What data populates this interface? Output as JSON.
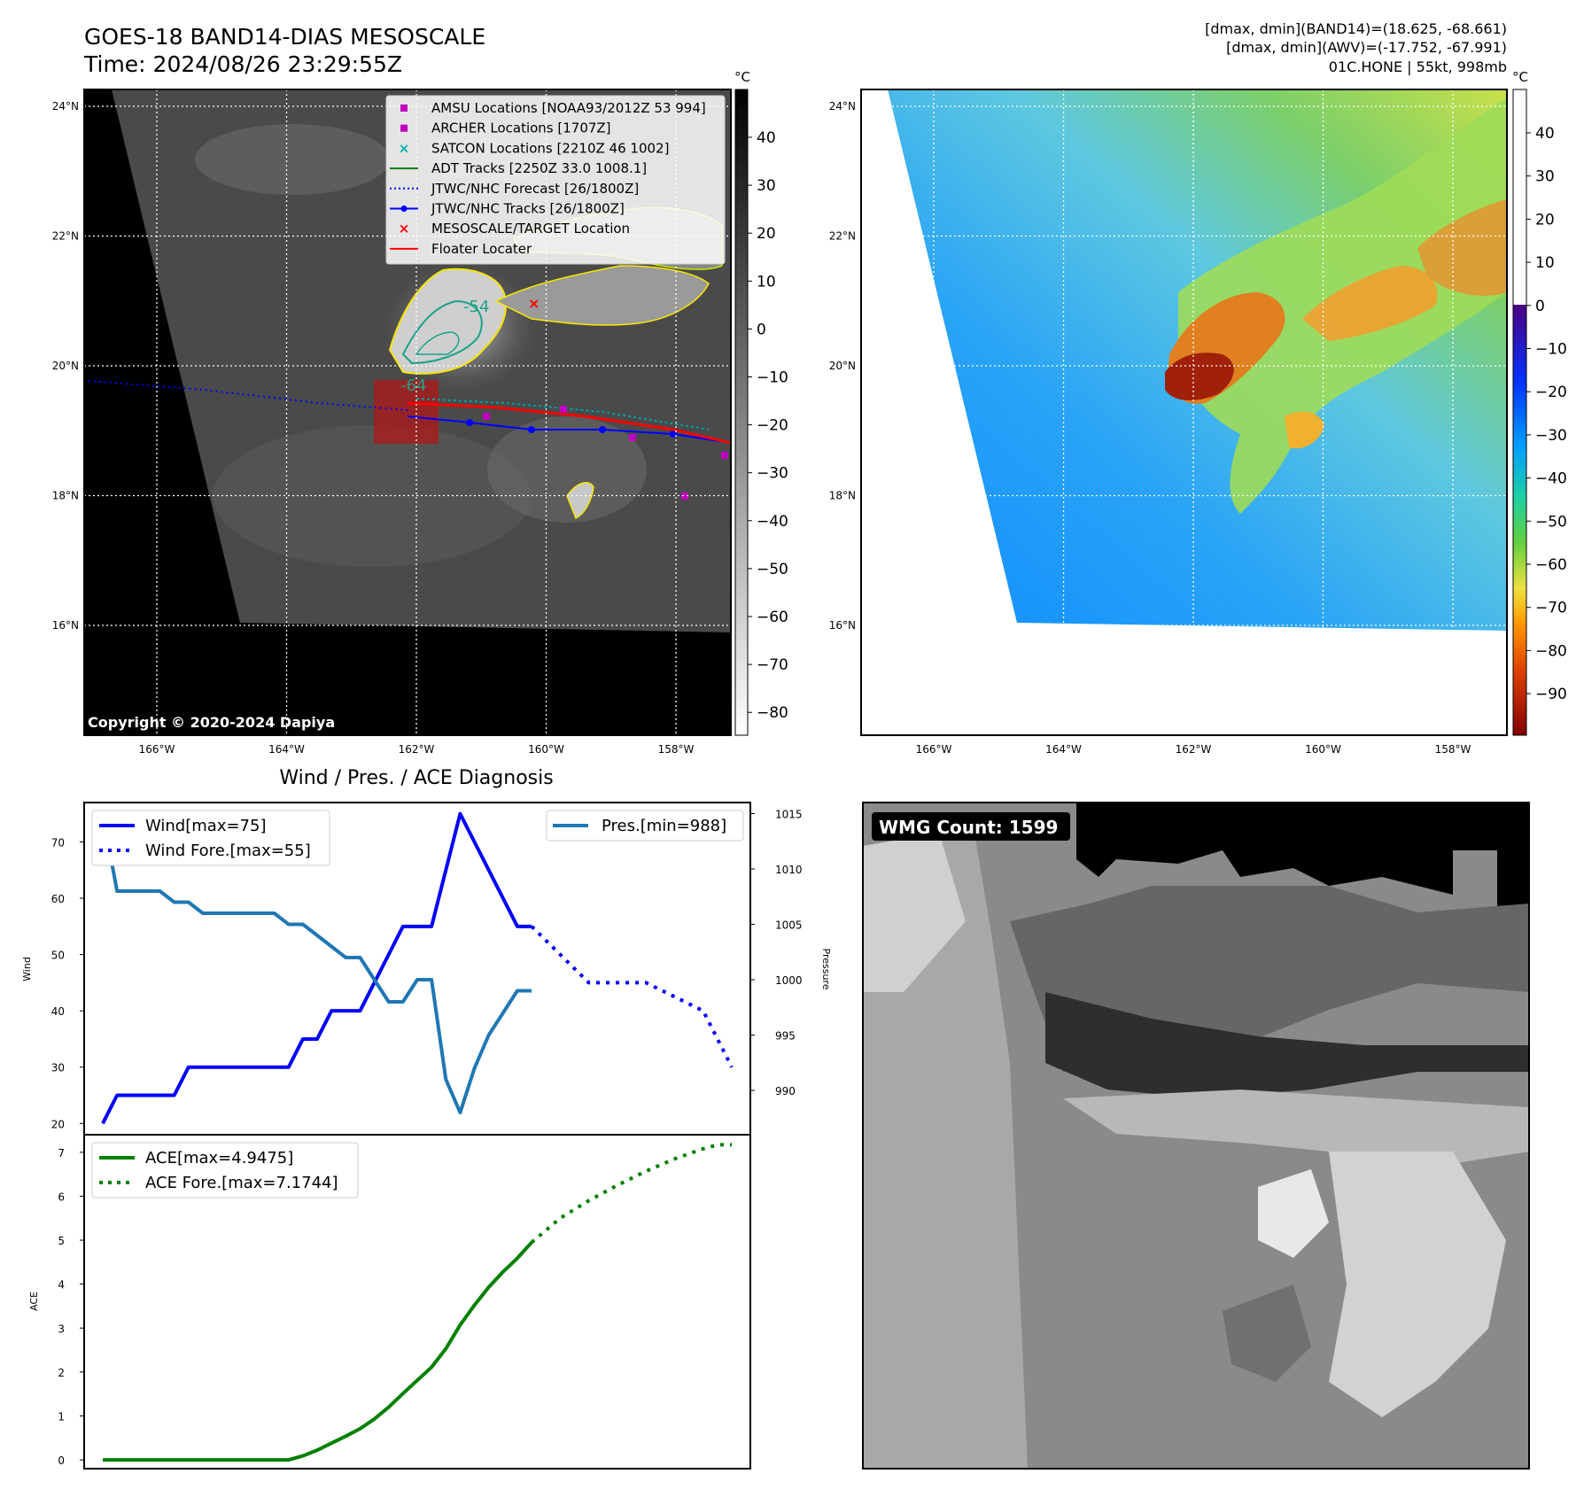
{
  "header": {
    "title": "GOES-18 BAND14-DIAS MESOSCALE",
    "time": "Time: 2024/08/26 23:29:55Z",
    "stats_line1": "[dmax, dmin](BAND14)=(18.625, -68.661)",
    "stats_line2": "[dmax, dmin](AWV)=(-17.752, -67.991)",
    "storm_line": "01C.HONE | 55kt, 998mb"
  },
  "map_axes": {
    "lon_labels": [
      "166°W",
      "164°W",
      "162°W",
      "160°W",
      "158°W"
    ],
    "lat_labels": [
      "24°N",
      "22°N",
      "20°N",
      "18°N",
      "16°N"
    ]
  },
  "ir_panel": {
    "copyright": "Copyright © 2020-2024 Dapiya",
    "contour_labels": [
      "-54",
      "-64"
    ],
    "legend": [
      {
        "label": "AMSU Locations [NOAA93/2012Z 53 994]",
        "marker": "square",
        "color": "#c000c0"
      },
      {
        "label": "ARCHER Locations [1707Z]",
        "marker": "square",
        "color": "#c000c0"
      },
      {
        "label": "SATCON Locations [2210Z 46 1002]",
        "marker": "x",
        "color": "#00b0b0"
      },
      {
        "label": "ADT Tracks [2250Z 33.0 1008.1]",
        "marker": "line",
        "color": "#008000"
      },
      {
        "label": "JTWC/NHC Forecast [26/1800Z]",
        "marker": "dotted",
        "color": "#0000ff"
      },
      {
        "label": "JTWC/NHC Tracks [26/1800Z]",
        "marker": "line-dot",
        "color": "#0000ff"
      },
      {
        "label": "MESOSCALE/TARGET Location",
        "marker": "x",
        "color": "#ff0000"
      },
      {
        "label": "Floater Locater",
        "marker": "line",
        "color": "#ff0000"
      }
    ]
  },
  "ir_colorbar": {
    "unit": "°C",
    "ticks": [
      "40",
      "30",
      "20",
      "10",
      "0",
      "−10",
      "−20",
      "−30",
      "−40",
      "−50",
      "−60",
      "−70",
      "−80"
    ]
  },
  "enhanced_colorbar": {
    "unit": "°C",
    "ticks": [
      "40",
      "30",
      "20",
      "10",
      "0",
      "−10",
      "−20",
      "−30",
      "−40",
      "−50",
      "−60",
      "−70",
      "−80",
      "−90"
    ],
    "colors": [
      "#ffffff",
      "#4b0082",
      "#0033ff",
      "#00a0ff",
      "#20d0a0",
      "#60d040",
      "#f0e040",
      "#ff9900",
      "#e04000",
      "#800000"
    ]
  },
  "wmg_panel": {
    "label": "WMG Count: 1599"
  },
  "chart_data": [
    {
      "type": "line",
      "title": "Wind / Pres. / ACE Diagnosis",
      "ylabel": "Wind",
      "ylabel_right": "Pressure",
      "x": [
        0,
        1,
        2,
        3,
        4,
        5,
        6,
        7,
        8,
        9,
        10,
        11,
        12,
        13,
        14,
        15,
        16,
        17,
        18,
        19,
        20,
        21,
        22,
        23,
        24,
        25,
        26,
        27,
        28,
        29,
        30,
        31,
        32,
        33,
        34,
        35,
        36,
        37,
        38,
        39,
        40,
        41,
        42,
        43,
        44
      ],
      "ylim": [
        18,
        77
      ],
      "ylim_right": [
        986,
        1016
      ],
      "yticks": [
        20,
        30,
        40,
        50,
        60,
        70
      ],
      "yticks_right": [
        990,
        995,
        1000,
        1005,
        1010,
        1015
      ],
      "series": [
        {
          "name": "Wind[max=75]",
          "axis": "left",
          "style": "solid",
          "color": "#0000ff",
          "x": [
            0,
            1,
            2,
            3,
            4,
            5,
            6,
            7,
            8,
            9,
            10,
            11,
            12,
            13,
            14,
            15,
            16,
            17,
            18,
            19,
            20,
            21,
            22,
            23,
            24,
            25,
            26,
            27,
            28,
            29,
            30
          ],
          "values": [
            20,
            25,
            25,
            25,
            25,
            25,
            30,
            30,
            30,
            30,
            30,
            30,
            30,
            30,
            35,
            35,
            40,
            40,
            40,
            45,
            50,
            55,
            55,
            55,
            65,
            75,
            70,
            65,
            60,
            55,
            55
          ]
        },
        {
          "name": "Wind Fore.[max=55]",
          "axis": "left",
          "style": "dotted",
          "color": "#0000ff",
          "x": [
            30,
            34,
            38,
            42,
            44
          ],
          "values": [
            55,
            45,
            45,
            40,
            30
          ]
        },
        {
          "name": "Pres.[min=988]",
          "axis": "right",
          "style": "solid",
          "color": "#1f77b4",
          "x": [
            0,
            1,
            2,
            3,
            4,
            5,
            6,
            7,
            8,
            9,
            10,
            11,
            12,
            13,
            14,
            15,
            16,
            17,
            18,
            19,
            20,
            21,
            22,
            23,
            24,
            25,
            26,
            27,
            28,
            29,
            30
          ],
          "values": [
            1015,
            1008,
            1008,
            1008,
            1008,
            1007,
            1007,
            1006,
            1006,
            1006,
            1006,
            1006,
            1006,
            1005,
            1005,
            1004,
            1003,
            1002,
            1002,
            1000,
            998,
            998,
            1000,
            1000,
            991,
            988,
            992,
            995,
            997,
            999,
            999
          ]
        }
      ]
    },
    {
      "type": "line",
      "ylabel": "ACE",
      "x": [
        0,
        1,
        2,
        3,
        4,
        5,
        6,
        7,
        8,
        9,
        10,
        11,
        12,
        13,
        14,
        15,
        16,
        17,
        18,
        19,
        20,
        21,
        22,
        23,
        24,
        25,
        26,
        27,
        28,
        29,
        30,
        31,
        32,
        33,
        34,
        35,
        36,
        37,
        38,
        39,
        40,
        41,
        42,
        43,
        44
      ],
      "ylim": [
        -0.2,
        7.4
      ],
      "yticks": [
        0,
        1,
        2,
        3,
        4,
        5,
        6,
        7
      ],
      "series": [
        {
          "name": "ACE[max=4.9475]",
          "style": "solid",
          "color": "#008000",
          "x": [
            0,
            1,
            2,
            3,
            4,
            5,
            6,
            7,
            8,
            9,
            10,
            11,
            12,
            13,
            14,
            15,
            16,
            17,
            18,
            19,
            20,
            21,
            22,
            23,
            24,
            25,
            26,
            27,
            28,
            29,
            30
          ],
          "values": [
            0,
            0,
            0,
            0,
            0,
            0,
            0,
            0,
            0,
            0,
            0,
            0,
            0,
            0,
            0.09,
            0.22,
            0.38,
            0.54,
            0.71,
            0.93,
            1.2,
            1.51,
            1.81,
            2.11,
            2.53,
            3.07,
            3.52,
            3.93,
            4.28,
            4.59,
            4.95
          ]
        },
        {
          "name": "ACE Fore.[max=7.1744]",
          "style": "dotted",
          "color": "#008000",
          "x": [
            30,
            32,
            34,
            36,
            38,
            40,
            42,
            43,
            44
          ],
          "values": [
            4.95,
            5.5,
            5.9,
            6.25,
            6.57,
            6.85,
            7.08,
            7.17,
            7.17
          ]
        }
      ]
    }
  ]
}
